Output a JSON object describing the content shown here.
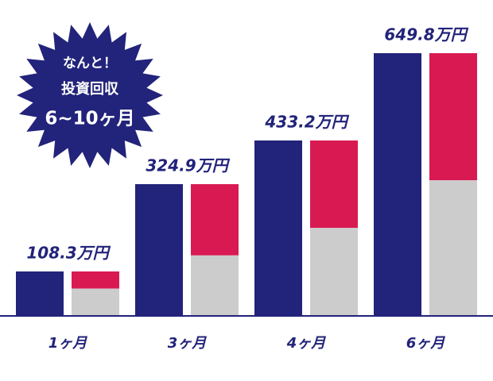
{
  "chart_data": {
    "type": "bar",
    "categories": [
      "1ヶ月",
      "3ヶ月",
      "4ヶ月",
      "6ヶ月"
    ],
    "series": [
      {
        "color": "#22237a",
        "values": [
          108.3,
          324.9,
          433.2,
          649.8
        ],
        "value_labels": [
          "108.3万円",
          "324.9万円",
          "433.2万円",
          "649.8万円"
        ]
      },
      {
        "color": "#cccccc",
        "values": [
          66.0,
          148.3,
          216.6,
          334.7
        ]
      },
      {
        "color": "#d91a52",
        "values": [
          42.3,
          176.6,
          216.6,
          315.1
        ]
      }
    ],
    "annotation": [
      "なんと！",
      "投資回収",
      "6~10ヶ月"
    ]
  }
}
